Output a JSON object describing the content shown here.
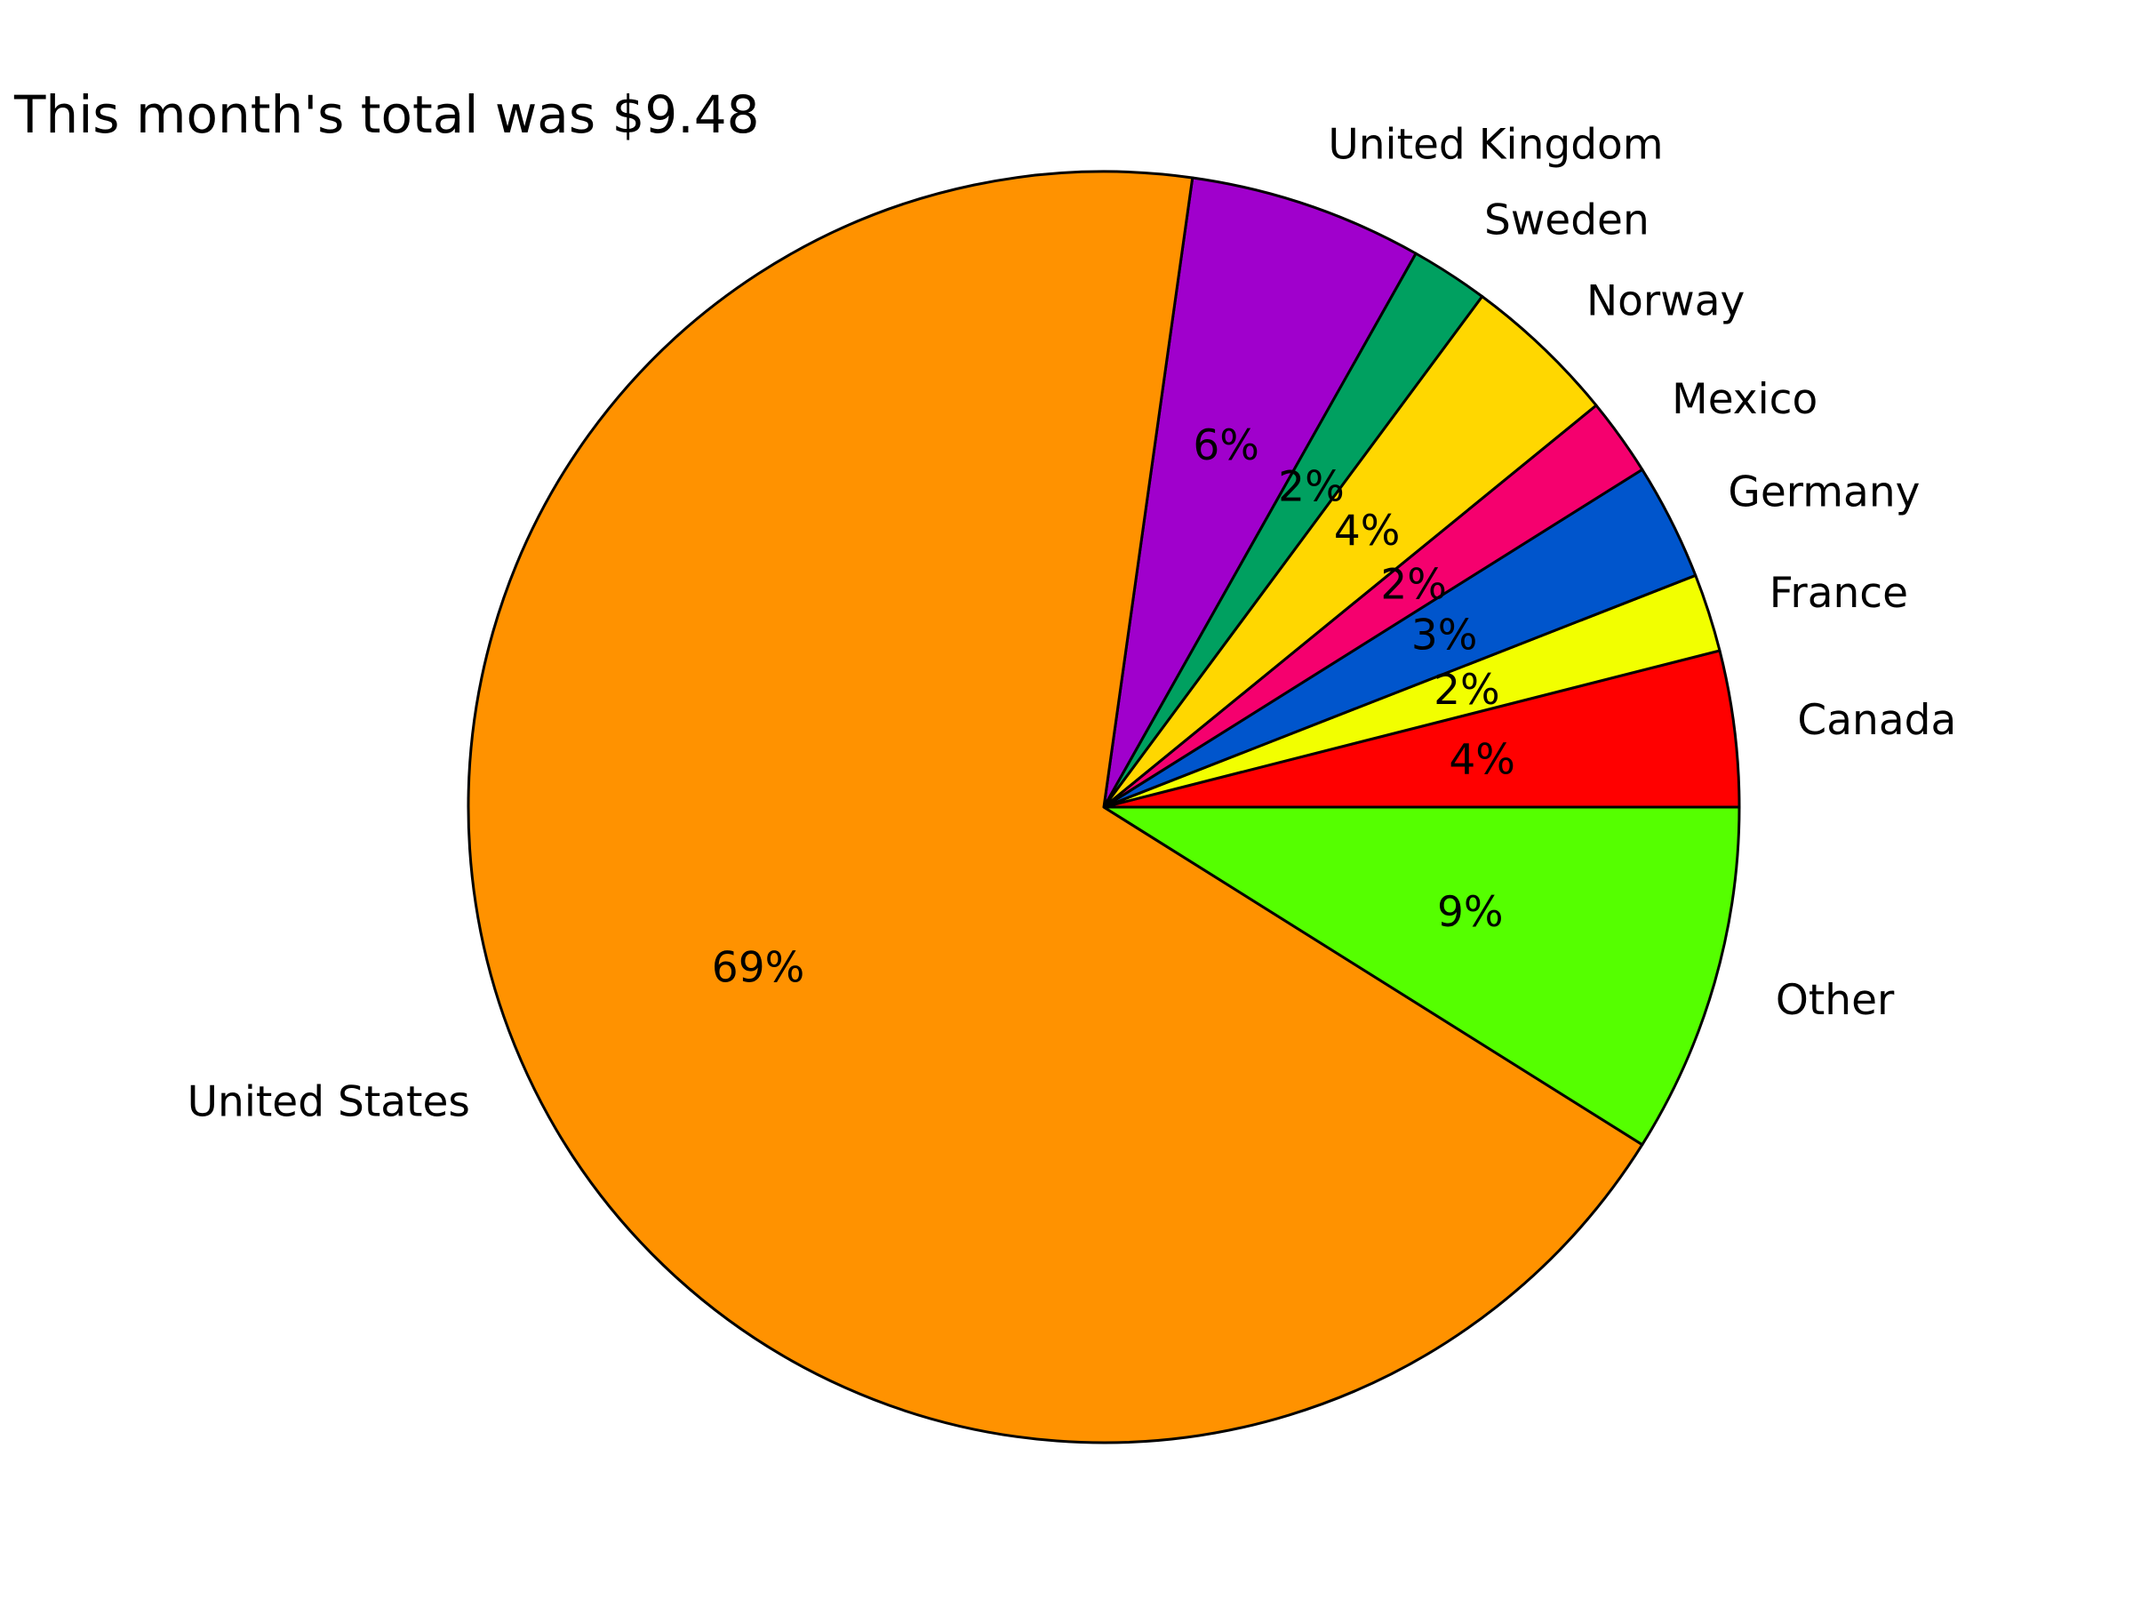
{
  "chart_data": {
    "type": "pie",
    "title": "This month's total was $9.48",
    "start_angle_deg": 0,
    "direction": "counterclockwise",
    "slices": [
      {
        "label": "Canada",
        "value": 4,
        "pct_label": "4%",
        "color": "#ff0000"
      },
      {
        "label": "France",
        "value": 2,
        "pct_label": "2%",
        "color": "#f2ff00"
      },
      {
        "label": "Germany",
        "value": 3,
        "pct_label": "3%",
        "color": "#0055cc"
      },
      {
        "label": "Mexico",
        "value": 2,
        "pct_label": "2%",
        "color": "#f5006e"
      },
      {
        "label": "Norway",
        "value": 4,
        "pct_label": "4%",
        "color": "#ffd700"
      },
      {
        "label": "Sweden",
        "value": 2,
        "pct_label": "2%",
        "color": "#00a060"
      },
      {
        "label": "United Kingdom",
        "value": 6,
        "pct_label": "6%",
        "color": "#a000cc"
      },
      {
        "label": "United States",
        "value": 69,
        "pct_label": "69%",
        "color": "#ff9200"
      },
      {
        "label": "Other",
        "value": 9,
        "pct_label": "9%",
        "color": "#55ff00"
      }
    ]
  }
}
